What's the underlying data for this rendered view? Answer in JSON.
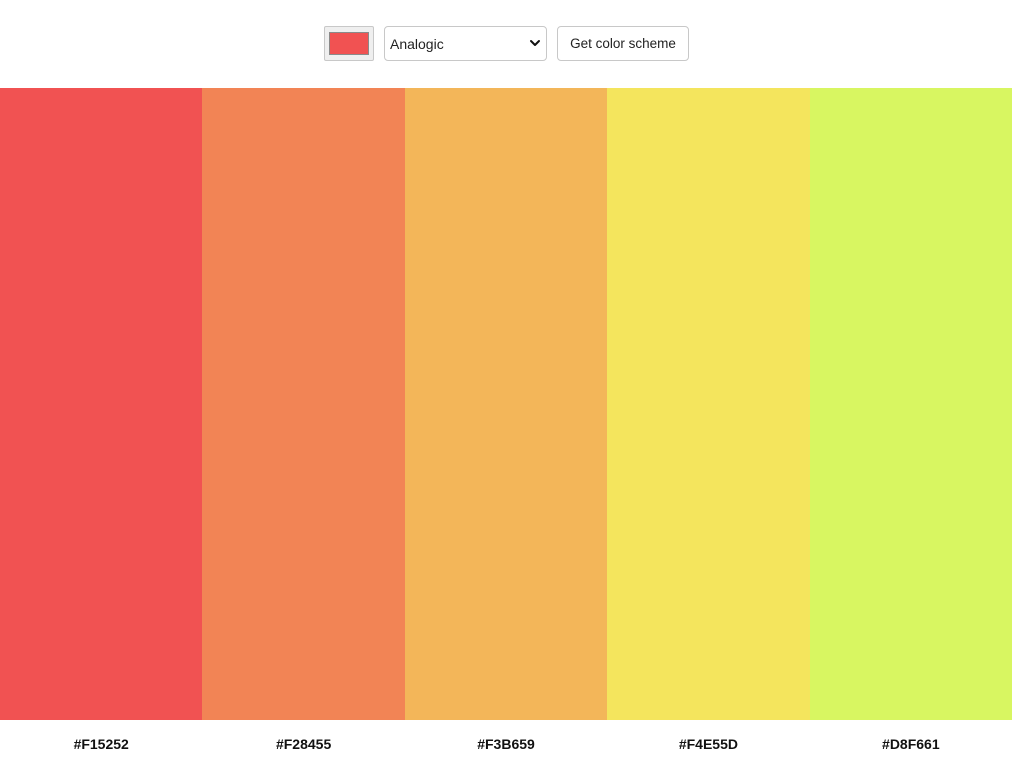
{
  "toolbar": {
    "seed_color": "#F15252",
    "mode_select": {
      "selected": "Analogic"
    },
    "get_button_label": "Get color scheme"
  },
  "scheme": {
    "colors": [
      {
        "hex": "#F15252"
      },
      {
        "hex": "#F28455"
      },
      {
        "hex": "#F3B659"
      },
      {
        "hex": "#F4E55D"
      },
      {
        "hex": "#D8F661"
      }
    ]
  },
  "icons": {
    "dropdown": "chevron-down-icon"
  }
}
